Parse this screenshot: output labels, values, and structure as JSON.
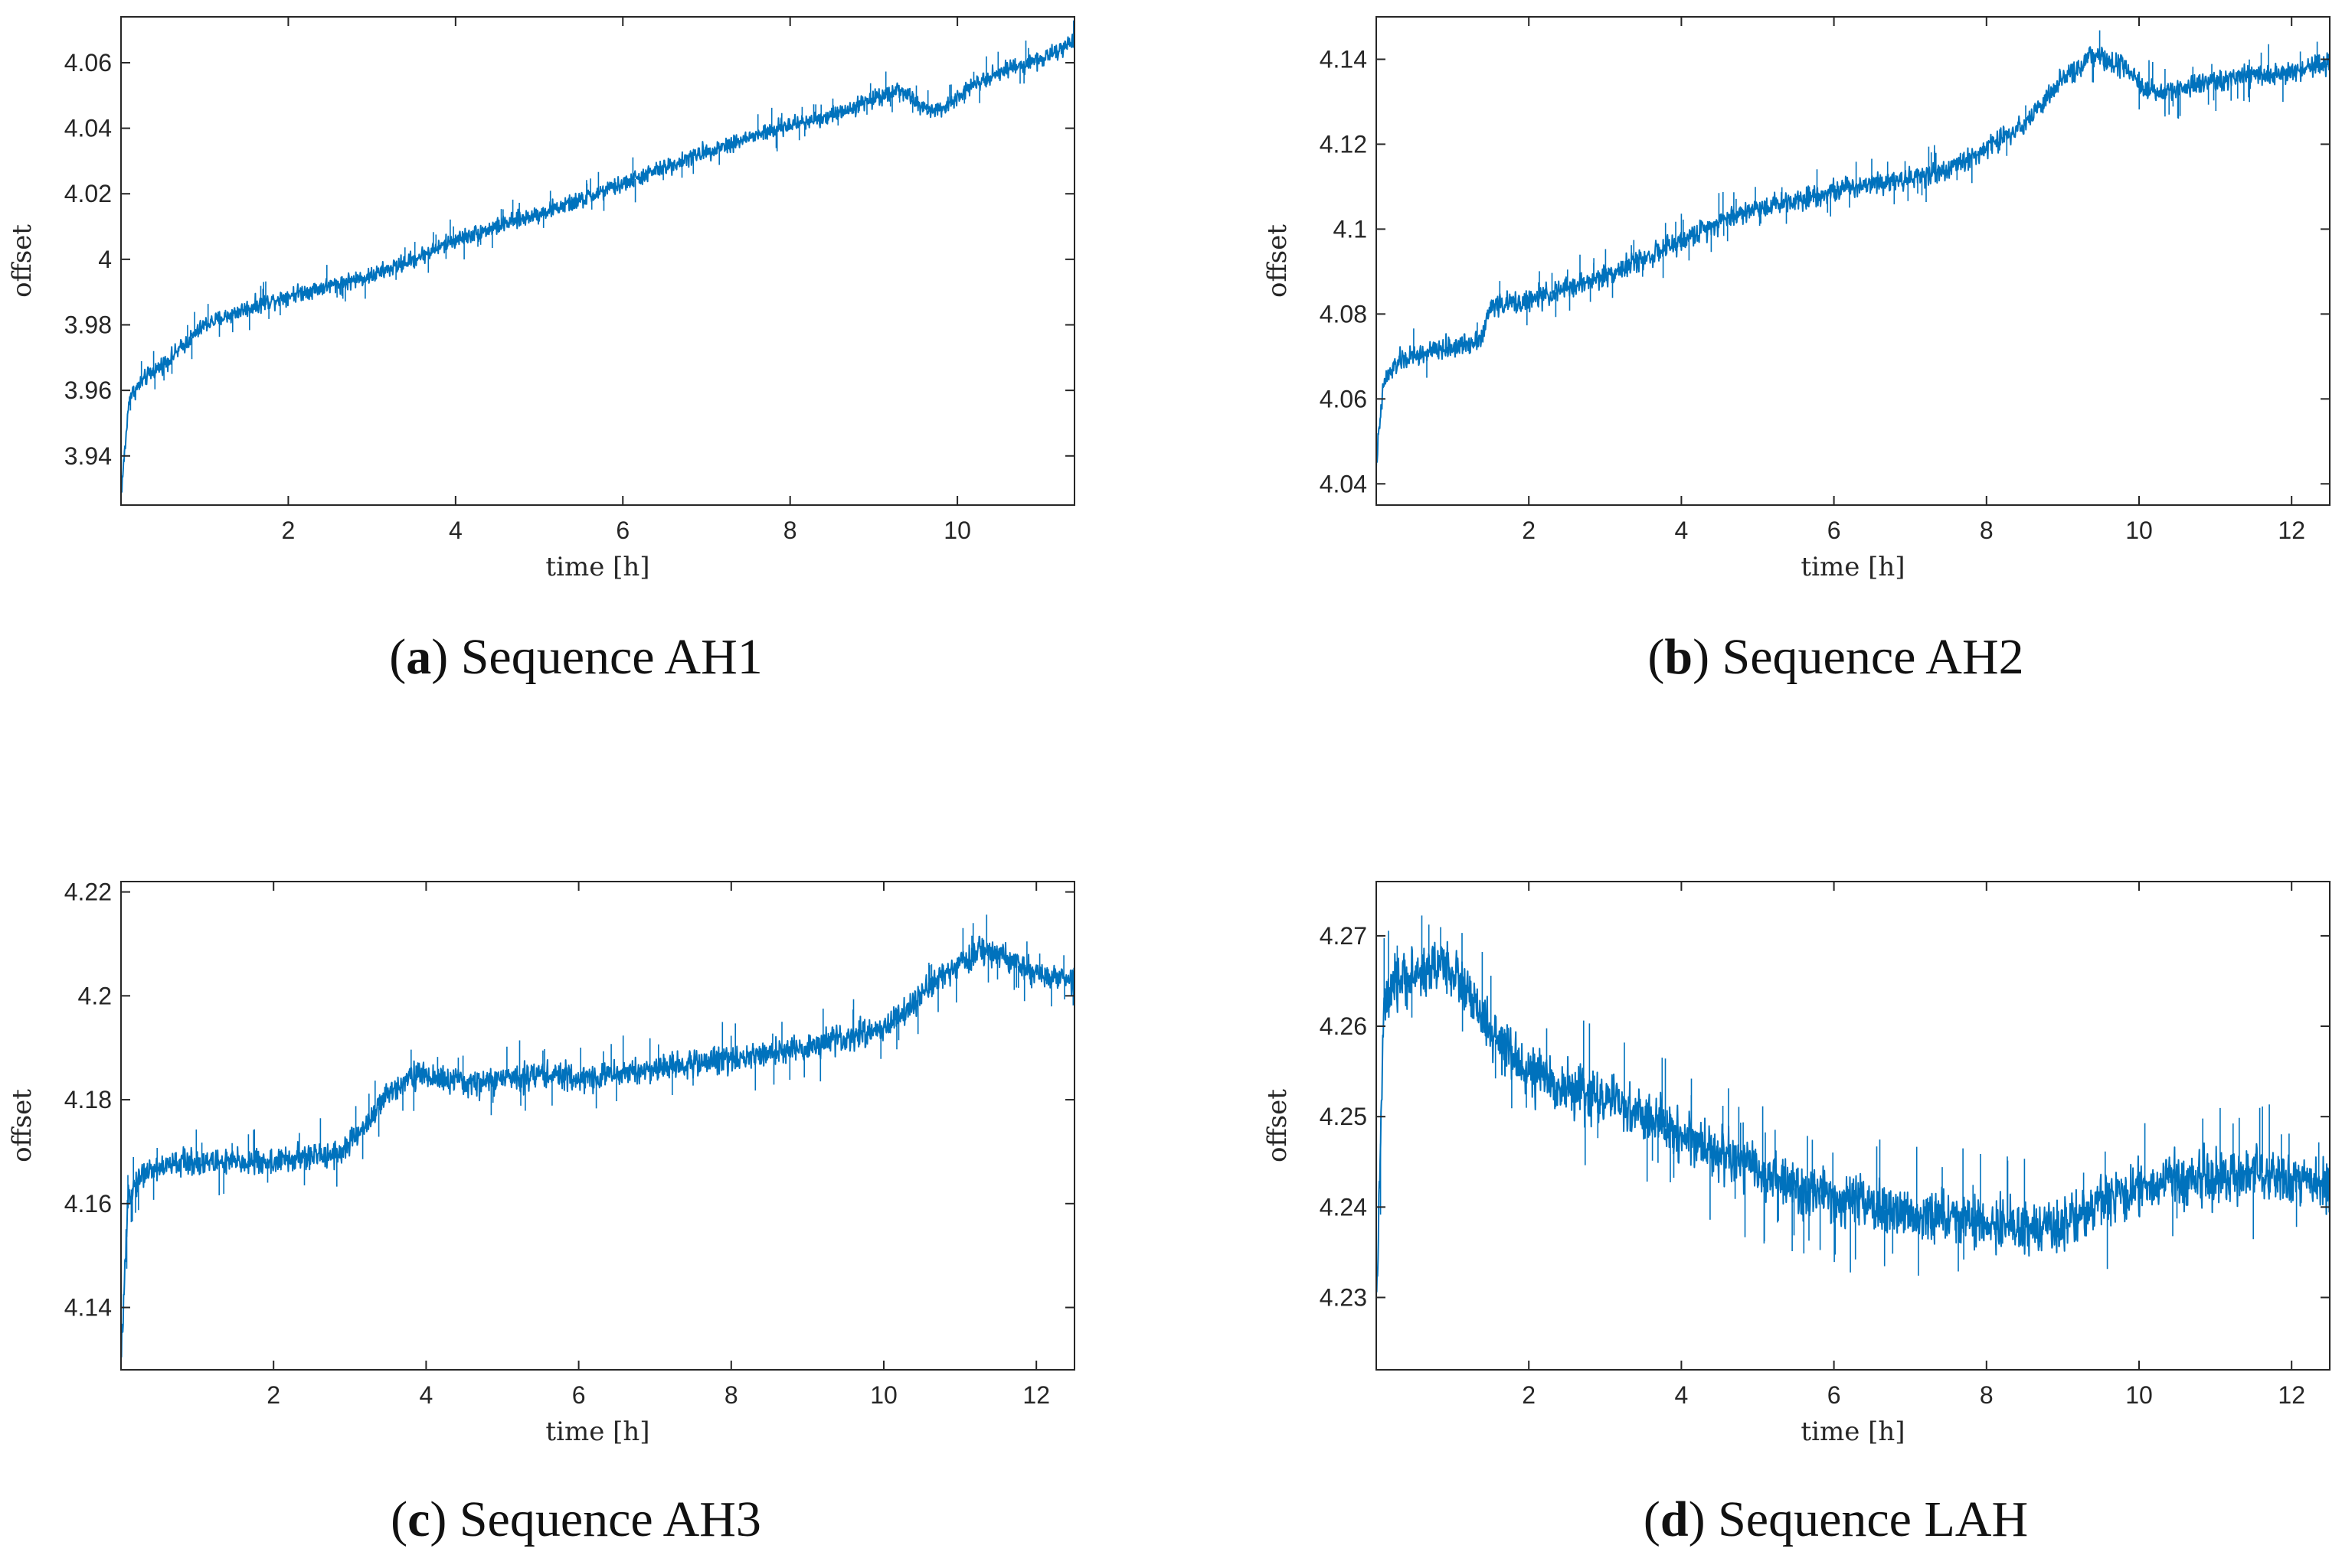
{
  "figure": {
    "line_color": "#0072BD",
    "panels": [
      {
        "letter": "a",
        "caption": "Sequence AH1",
        "chart_data": {
          "type": "line",
          "title": "",
          "xlabel": "time [h]",
          "ylabel": "offset",
          "xlim": [
            0,
            11.4
          ],
          "ylim": [
            3.925,
            4.074
          ],
          "xticks": [
            2,
            4,
            6,
            8,
            10
          ],
          "xtick_labels": [
            "2",
            "4",
            "6",
            "8",
            "10"
          ],
          "yticks": [
            3.94,
            3.96,
            3.98,
            4.0,
            4.02,
            4.04,
            4.06
          ],
          "ytick_labels": [
            "3.94",
            "3.96",
            "3.98",
            "4",
            "4.02",
            "4.04",
            "4.06"
          ],
          "series": [
            {
              "name": "offset",
              "x": [
                0,
                0.1,
                0.3,
                0.6,
                1.0,
                1.5,
                2.0,
                2.5,
                3.0,
                3.5,
                4.0,
                4.5,
                5.0,
                5.5,
                6.0,
                6.5,
                7.0,
                7.5,
                8.0,
                8.5,
                9.0,
                9.3,
                9.6,
                9.8,
                10.0,
                10.3,
                10.7,
                11.0,
                11.4
              ],
              "y": [
                3.928,
                3.958,
                3.964,
                3.97,
                3.98,
                3.985,
                3.989,
                3.992,
                3.995,
                4.0,
                4.006,
                4.01,
                4.014,
                4.018,
                4.023,
                4.028,
                4.033,
                4.037,
                4.041,
                4.044,
                4.049,
                4.052,
                4.046,
                4.045,
                4.05,
                4.055,
                4.059,
                4.061,
                4.066
              ],
              "noise_band": 0.004
            }
          ]
        }
      },
      {
        "letter": "b",
        "caption": "Sequence AH2",
        "chart_data": {
          "type": "line",
          "title": "",
          "xlabel": "time [h]",
          "ylabel": "offset",
          "xlim": [
            0,
            12.5
          ],
          "ylim": [
            4.035,
            4.15
          ],
          "xticks": [
            2,
            4,
            6,
            8,
            10,
            12
          ],
          "xtick_labels": [
            "2",
            "4",
            "6",
            "8",
            "10",
            "12"
          ],
          "yticks": [
            4.04,
            4.06,
            4.08,
            4.1,
            4.12,
            4.14
          ],
          "ytick_labels": [
            "4.04",
            "4.06",
            "4.08",
            "4.1",
            "4.12",
            "4.14"
          ],
          "series": [
            {
              "name": "offset",
              "x": [
                0,
                0.1,
                0.3,
                0.7,
                1.2,
                1.4,
                1.5,
                2.0,
                2.5,
                3.0,
                3.5,
                4.0,
                4.5,
                5.0,
                5.5,
                6.0,
                6.5,
                7.0,
                7.5,
                8.0,
                8.5,
                9.0,
                9.4,
                9.8,
                10.0,
                10.2,
                10.5,
                11.0,
                11.5,
                12.0,
                12.5
              ],
              "y": [
                4.045,
                4.064,
                4.069,
                4.071,
                4.073,
                4.075,
                4.082,
                4.083,
                4.086,
                4.089,
                4.093,
                4.097,
                4.102,
                4.105,
                4.107,
                4.109,
                4.111,
                4.112,
                4.114,
                4.119,
                4.125,
                4.135,
                4.141,
                4.138,
                4.134,
                4.132,
                4.133,
                4.135,
                4.136,
                4.137,
                4.139
              ],
              "noise_band": 0.004
            }
          ]
        }
      },
      {
        "letter": "c",
        "caption": "Sequence AH3",
        "chart_data": {
          "type": "line",
          "title": "",
          "xlabel": "time [h]",
          "ylabel": "offset",
          "xlim": [
            0,
            12.5
          ],
          "ylim": [
            4.128,
            4.222
          ],
          "xticks": [
            2,
            4,
            6,
            8,
            10,
            12
          ],
          "xtick_labels": [
            "2",
            "4",
            "6",
            "8",
            "10",
            "12"
          ],
          "yticks": [
            4.14,
            4.16,
            4.18,
            4.2,
            4.22
          ],
          "ytick_labels": [
            "4.14",
            "4.16",
            "4.18",
            "4.2",
            "4.22"
          ],
          "series": [
            {
              "name": "offset",
              "x": [
                0,
                0.1,
                0.3,
                0.8,
                1.5,
                2.0,
                2.5,
                2.9,
                3.2,
                3.5,
                3.8,
                4.2,
                4.6,
                5.0,
                5.5,
                6.0,
                6.5,
                7.0,
                7.5,
                8.0,
                8.5,
                9.0,
                9.5,
                10.0,
                10.3,
                10.7,
                11.0,
                11.3,
                11.6,
                12.0,
                12.5
              ],
              "y": [
                4.13,
                4.162,
                4.166,
                4.168,
                4.168,
                4.168,
                4.169,
                4.17,
                4.175,
                4.181,
                4.185,
                4.184,
                4.183,
                4.184,
                4.185,
                4.184,
                4.185,
                4.186,
                4.187,
                4.188,
                4.189,
                4.19,
                4.192,
                4.194,
                4.197,
                4.203,
                4.206,
                4.209,
                4.207,
                4.204,
                4.203
              ],
              "noise_band": 0.004
            }
          ]
        }
      },
      {
        "letter": "d",
        "caption": "Sequence LAH",
        "chart_data": {
          "type": "line",
          "title": "",
          "xlabel": "time [h]",
          "ylabel": "offset",
          "xlim": [
            0,
            12.5
          ],
          "ylim": [
            4.222,
            4.276
          ],
          "xticks": [
            2,
            4,
            6,
            8,
            10,
            12
          ],
          "xtick_labels": [
            "2",
            "4",
            "6",
            "8",
            "10",
            "12"
          ],
          "yticks": [
            4.23,
            4.24,
            4.25,
            4.26,
            4.27
          ],
          "ytick_labels": [
            "4.23",
            "4.24",
            "4.25",
            "4.26",
            "4.27"
          ],
          "series": [
            {
              "name": "offset",
              "x": [
                0,
                0.1,
                0.3,
                0.6,
                0.9,
                1.1,
                1.3,
                1.6,
                2.0,
                2.5,
                3.0,
                3.5,
                4.0,
                4.5,
                5.0,
                5.5,
                6.0,
                6.5,
                7.0,
                7.5,
                8.0,
                8.5,
                8.8,
                9.2,
                9.6,
                10.0,
                10.5,
                11.0,
                11.5,
                12.0,
                12.5
              ],
              "y": [
                4.228,
                4.262,
                4.265,
                4.266,
                4.267,
                4.265,
                4.262,
                4.258,
                4.255,
                4.253,
                4.252,
                4.25,
                4.248,
                4.246,
                4.244,
                4.242,
                4.241,
                4.24,
                4.239,
                4.239,
                4.238,
                4.238,
                4.237,
                4.239,
                4.241,
                4.242,
                4.243,
                4.243,
                4.244,
                4.243,
                4.242
              ],
              "noise_band": 0.0045
            }
          ]
        }
      }
    ]
  }
}
